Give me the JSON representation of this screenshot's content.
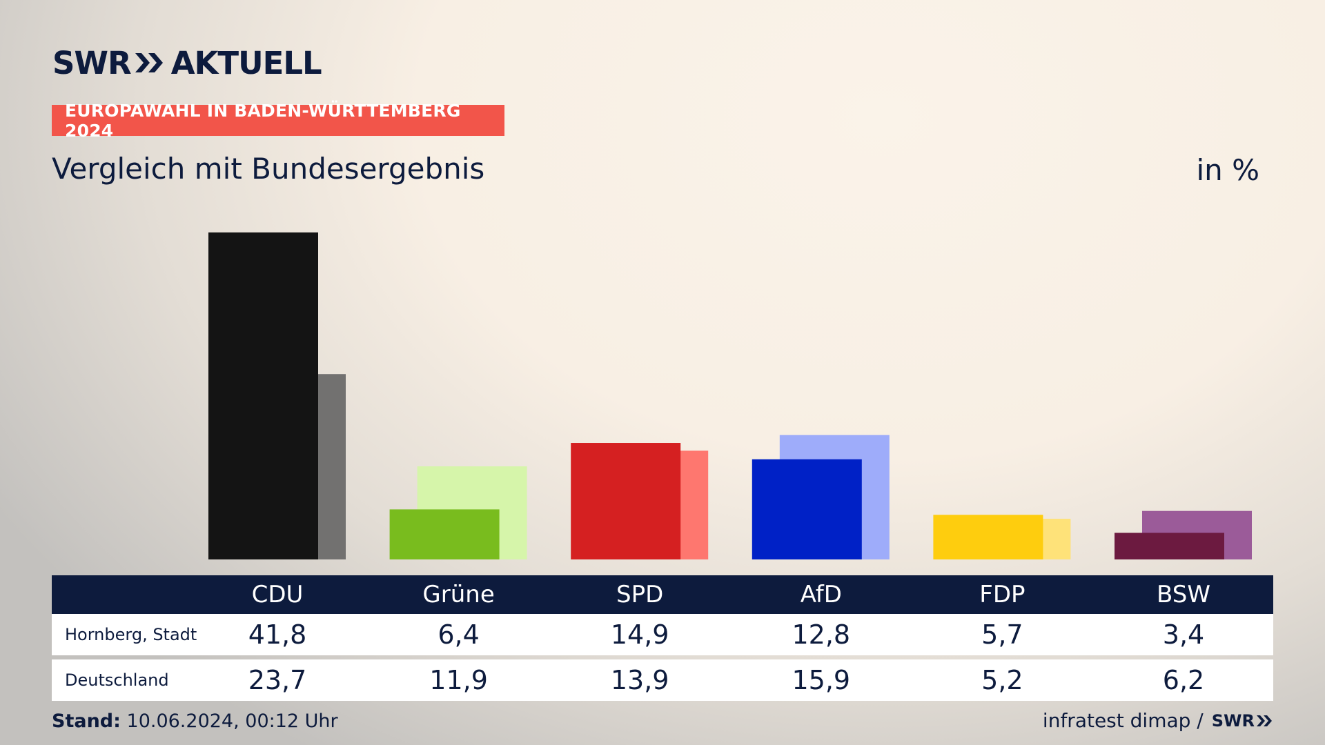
{
  "brand": {
    "logo_left": "SWR",
    "logo_right": "AKTUELL",
    "mini_logo": "SWR"
  },
  "tag_label": "EUROPAWAHL IN BADEN-WÜRTTEMBERG 2024",
  "subtitle": "Vergleich mit Bundesergebnis",
  "unit": "in %",
  "footer": {
    "stand_label": "Stand:",
    "stand_value": "10.06.2024, 00:12 Uhr",
    "source": "infratest dimap /"
  },
  "table": {
    "rows": [
      {
        "label": "Hornberg, Stadt",
        "values": [
          "41,8",
          "6,4",
          "14,9",
          "12,8",
          "5,7",
          "3,4"
        ]
      },
      {
        "label": "Deutschland",
        "values": [
          "23,7",
          "11,9",
          "13,9",
          "15,9",
          "5,2",
          "6,2"
        ]
      }
    ]
  },
  "chart_data": {
    "type": "bar",
    "categories": [
      "CDU",
      "Grüne",
      "SPD",
      "AfD",
      "FDP",
      "BSW"
    ],
    "series": [
      {
        "name": "Hornberg, Stadt",
        "values": [
          41.8,
          6.4,
          14.9,
          12.8,
          5.7,
          3.4
        ],
        "colors": [
          "#141414",
          "#79bc1e",
          "#d52021",
          "#0021c6",
          "#fecd0e",
          "#6c1a40"
        ]
      },
      {
        "name": "Deutschland",
        "values": [
          23.7,
          11.9,
          13.9,
          15.9,
          5.2,
          6.2
        ],
        "colors": [
          "#727170",
          "#d6f5aa",
          "#fe776f",
          "#9eacfa",
          "#fee279",
          "#9b5b99"
        ]
      }
    ],
    "title": "Vergleich mit Bundesergebnis",
    "unit": "in %",
    "grid": false,
    "legend": "none"
  }
}
